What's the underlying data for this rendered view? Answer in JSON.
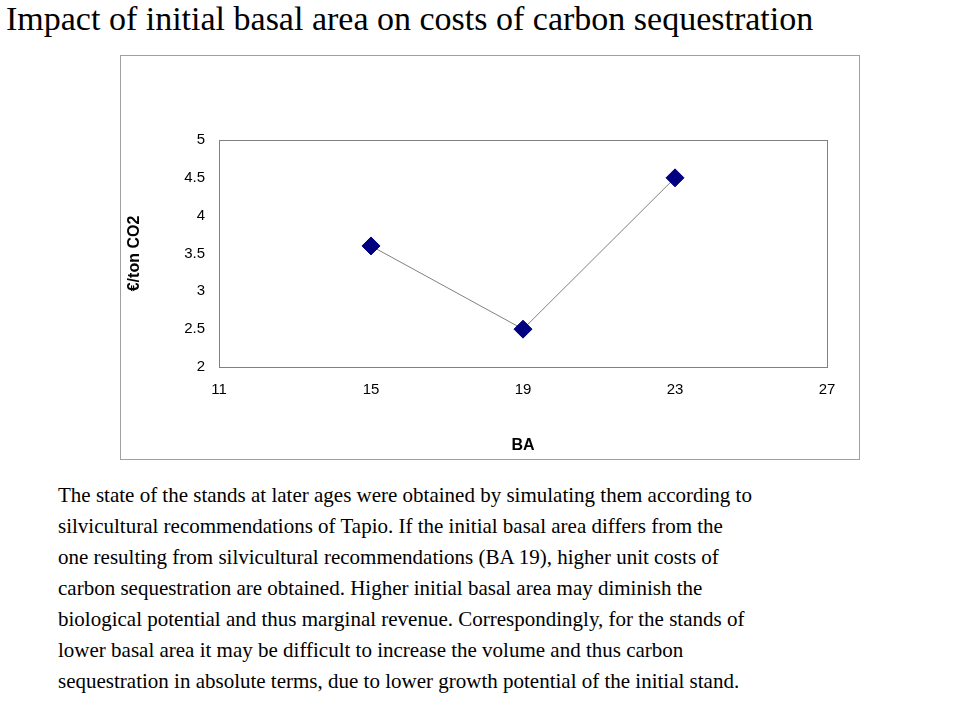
{
  "chart_data": {
    "type": "line",
    "title": "Impact of initial basal area on costs of carbon sequestration",
    "x_label": "BA",
    "y_label": "€/ton CO2",
    "x": [
      15,
      19,
      23
    ],
    "series": [
      {
        "color": "#000080",
        "values": [
          3.6,
          2.5,
          4.5
        ],
        "marker": "diamond",
        "line_style": "solid"
      }
    ],
    "xlim": [
      11,
      27
    ],
    "xticks": [
      11,
      15,
      19,
      23,
      27
    ],
    "ylim": [
      2,
      5
    ],
    "yticks": [
      2,
      2.5,
      3,
      3.5,
      4,
      4.5,
      5
    ],
    "grid": false
  },
  "text": {
    "paragraph": [
      "The state of the stands at later ages were obtained by simulating them according to",
      "silvicultural recommendations of Tapio. If the initial basal area differs from the",
      "one resulting from silvicultural recommendations (BA 19), higher unit costs of",
      "carbon sequestration are obtained. Higher initial basal area may diminish the",
      "biological potential and thus marginal revenue. Correspondingly, for the stands of",
      "lower basal area it may be difficult to increase the volume and thus carbon",
      "sequestration in absolute terms, due to lower growth potential of the initial stand."
    ]
  }
}
